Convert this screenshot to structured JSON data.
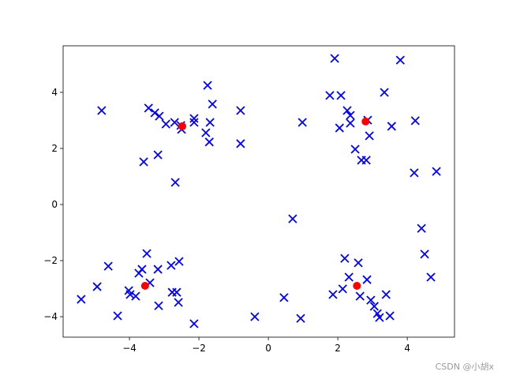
{
  "chart_data": {
    "type": "scatter",
    "title": "",
    "xlabel": "",
    "ylabel": "",
    "xlim": [
      -5.91,
      5.36
    ],
    "ylim": [
      -4.73,
      5.66
    ],
    "xticks": [
      -4,
      -2,
      0,
      2,
      4
    ],
    "yticks": [
      -4,
      -2,
      0,
      2,
      4
    ],
    "grid": false,
    "series": [
      {
        "marker": "x",
        "color": "#0000ff",
        "points": [
          [
            -4.8,
            3.35
          ],
          [
            -3.45,
            3.44
          ],
          [
            -3.27,
            3.27
          ],
          [
            -3.14,
            3.15
          ],
          [
            -2.95,
            2.87
          ],
          [
            -2.7,
            2.93
          ],
          [
            -2.52,
            2.82
          ],
          [
            -2.5,
            2.68
          ],
          [
            -1.75,
            4.25
          ],
          [
            -1.61,
            3.58
          ],
          [
            -1.68,
            2.93
          ],
          [
            -1.8,
            2.56
          ],
          [
            -1.7,
            2.23
          ],
          [
            -2.14,
            3.07
          ],
          [
            -2.14,
            2.93
          ],
          [
            -0.8,
            3.35
          ],
          [
            -0.8,
            2.17
          ],
          [
            -3.18,
            1.77
          ],
          [
            -3.59,
            1.52
          ],
          [
            -2.68,
            0.79
          ],
          [
            1.91,
            5.21
          ],
          [
            3.8,
            5.15
          ],
          [
            1.77,
            3.89
          ],
          [
            2.09,
            3.89
          ],
          [
            3.34,
            4.0
          ],
          [
            2.27,
            3.35
          ],
          [
            2.36,
            3.18
          ],
          [
            2.36,
            2.9
          ],
          [
            2.05,
            2.73
          ],
          [
            2.86,
            3.01
          ],
          [
            3.55,
            2.79
          ],
          [
            4.23,
            2.99
          ],
          [
            2.91,
            2.45
          ],
          [
            2.5,
            1.97
          ],
          [
            2.68,
            1.58
          ],
          [
            2.82,
            1.58
          ],
          [
            4.2,
            1.13
          ],
          [
            4.84,
            1.18
          ],
          [
            0.98,
            2.93
          ],
          [
            0.7,
            -0.51
          ],
          [
            4.41,
            -0.85
          ],
          [
            -5.39,
            -3.38
          ],
          [
            -4.93,
            -2.93
          ],
          [
            -4.61,
            -2.2
          ],
          [
            -4.34,
            -3.97
          ],
          [
            -4.02,
            -3.07
          ],
          [
            -3.98,
            -3.21
          ],
          [
            -3.82,
            -3.27
          ],
          [
            -3.73,
            -2.45
          ],
          [
            -3.64,
            -2.31
          ],
          [
            -3.5,
            -1.75
          ],
          [
            -3.41,
            -2.79
          ],
          [
            -3.18,
            -2.31
          ],
          [
            -3.16,
            -3.61
          ],
          [
            -2.8,
            -2.17
          ],
          [
            -2.77,
            -3.13
          ],
          [
            -2.64,
            -3.13
          ],
          [
            -2.57,
            -2.03
          ],
          [
            -2.59,
            -3.49
          ],
          [
            -2.14,
            -4.25
          ],
          [
            -0.39,
            -4.0
          ],
          [
            0.45,
            -3.32
          ],
          [
            0.93,
            -4.06
          ],
          [
            1.86,
            -3.21
          ],
          [
            2.14,
            -3.01
          ],
          [
            2.2,
            -1.92
          ],
          [
            2.32,
            -2.59
          ],
          [
            2.59,
            -2.08
          ],
          [
            2.64,
            -3.27
          ],
          [
            2.84,
            -2.68
          ],
          [
            2.95,
            -3.41
          ],
          [
            3.05,
            -3.63
          ],
          [
            3.14,
            -3.89
          ],
          [
            3.2,
            -4.03
          ],
          [
            3.39,
            -3.21
          ],
          [
            3.5,
            -3.97
          ],
          [
            4.5,
            -1.77
          ],
          [
            4.68,
            -2.59
          ]
        ]
      },
      {
        "marker": "o",
        "color": "#ff0000",
        "points": [
          [
            -2.48,
            2.79
          ],
          [
            2.8,
            2.96
          ],
          [
            -3.55,
            -2.9
          ],
          [
            2.55,
            -2.9
          ]
        ]
      }
    ]
  },
  "watermark": "CSDN @小胡x"
}
